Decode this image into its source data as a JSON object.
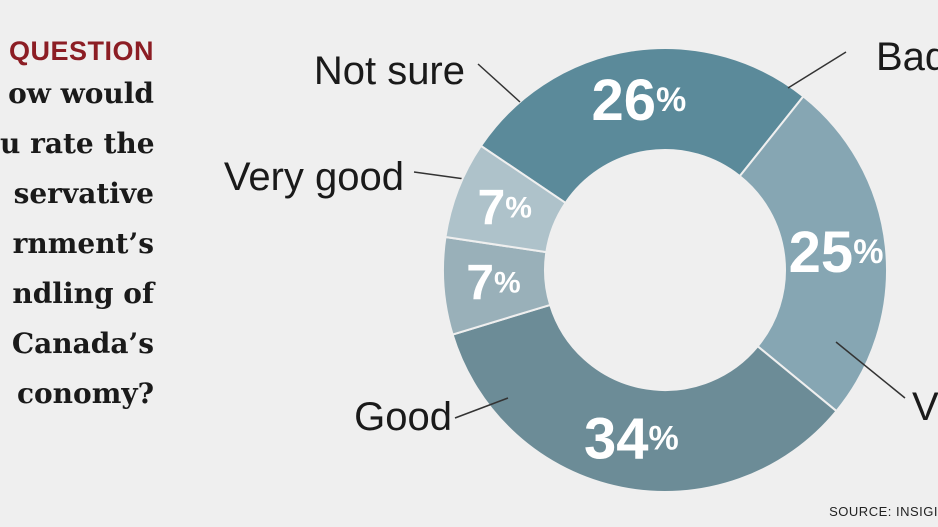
{
  "question": {
    "kicker": "QUESTION",
    "lines": [
      "ow would",
      "u rate the",
      "servative",
      "rnment’s",
      "ndling of",
      "Canada’s",
      "conomy?"
    ]
  },
  "source": "SOURCE: INSIGI",
  "chart_data": {
    "type": "pie",
    "donut": true,
    "categories": [
      "Bad",
      "Very bad",
      "Good",
      "Very good",
      "Not sure"
    ],
    "labels": [
      "Bad",
      "Ve",
      "Good",
      "Very good",
      "Not sure"
    ],
    "values": [
      26,
      25,
      34,
      7,
      7
    ],
    "value_labels": [
      "26",
      "25",
      "34",
      "7",
      "7"
    ],
    "percent_sign": "%",
    "colors": [
      "#5b8a9a",
      "#86a6b3",
      "#6c8c97",
      "#99b0b9",
      "#aec2ca"
    ],
    "legend": "none"
  }
}
